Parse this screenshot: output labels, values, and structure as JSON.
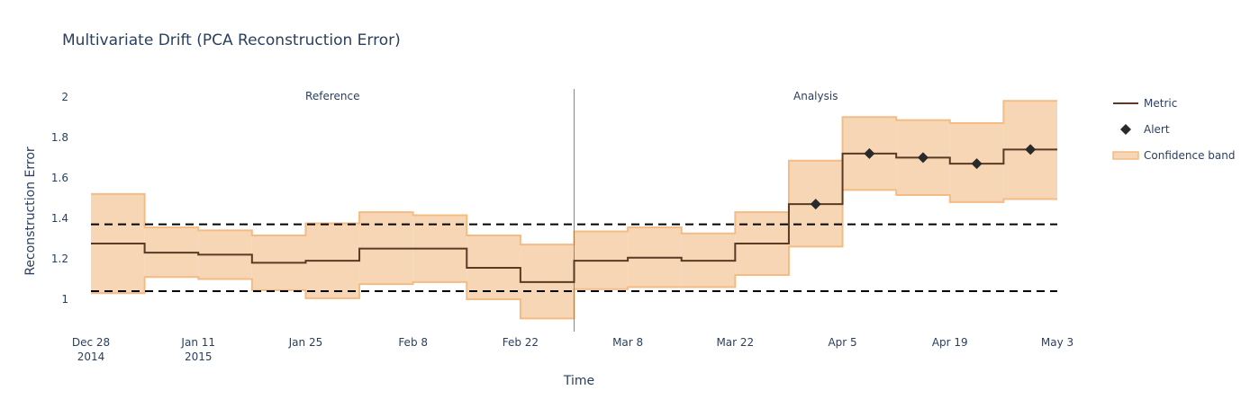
{
  "chart_data": {
    "type": "line",
    "title": "Multivariate Drift (PCA Reconstruction Error)",
    "xlabel": "Time",
    "ylabel": "Reconstruction Error",
    "ylim": [
      0.84,
      2.07
    ],
    "y_ticks": [
      1,
      1.2,
      1.4,
      1.6,
      1.8,
      2
    ],
    "y_tick_labels": [
      "1",
      "1.2",
      "1.4",
      "1.6",
      "1.8",
      "2"
    ],
    "x_range": [
      "2014-12-28",
      "2015-05-03"
    ],
    "x_ticks": [
      {
        "date": "2014-12-28",
        "label": "Dec 28",
        "sublabel": "2014"
      },
      {
        "date": "2015-01-11",
        "label": "Jan 11",
        "sublabel": "2015"
      },
      {
        "date": "2015-01-25",
        "label": "Jan 25",
        "sublabel": ""
      },
      {
        "date": "2015-02-08",
        "label": "Feb 8",
        "sublabel": ""
      },
      {
        "date": "2015-02-22",
        "label": "Feb 22",
        "sublabel": ""
      },
      {
        "date": "2015-03-08",
        "label": "Mar 8",
        "sublabel": ""
      },
      {
        "date": "2015-03-22",
        "label": "Mar 22",
        "sublabel": ""
      },
      {
        "date": "2015-04-05",
        "label": "Apr 5",
        "sublabel": ""
      },
      {
        "date": "2015-04-19",
        "label": "Apr 19",
        "sublabel": ""
      },
      {
        "date": "2015-05-03",
        "label": "May 3",
        "sublabel": ""
      }
    ],
    "chunks": [
      {
        "start": "2014-12-28",
        "end": "2015-01-04",
        "value": 1.275,
        "upper": 1.52,
        "lower": 1.03,
        "alert": false
      },
      {
        "start": "2015-01-04",
        "end": "2015-01-11",
        "value": 1.23,
        "upper": 1.355,
        "lower": 1.11,
        "alert": false
      },
      {
        "start": "2015-01-11",
        "end": "2015-01-18",
        "value": 1.22,
        "upper": 1.34,
        "lower": 1.1,
        "alert": false
      },
      {
        "start": "2015-01-18",
        "end": "2015-01-25",
        "value": 1.18,
        "upper": 1.315,
        "lower": 1.045,
        "alert": false
      },
      {
        "start": "2015-01-25",
        "end": "2015-02-01",
        "value": 1.19,
        "upper": 1.375,
        "lower": 1.005,
        "alert": false
      },
      {
        "start": "2015-02-01",
        "end": "2015-02-08",
        "value": 1.25,
        "upper": 1.43,
        "lower": 1.075,
        "alert": false
      },
      {
        "start": "2015-02-08",
        "end": "2015-02-15",
        "value": 1.25,
        "upper": 1.415,
        "lower": 1.085,
        "alert": false
      },
      {
        "start": "2015-02-15",
        "end": "2015-02-22",
        "value": 1.155,
        "upper": 1.315,
        "lower": 1.0,
        "alert": false
      },
      {
        "start": "2015-02-22",
        "end": "2015-03-01",
        "value": 1.085,
        "upper": 1.27,
        "lower": 0.905,
        "alert": false
      },
      {
        "start": "2015-03-01",
        "end": "2015-03-08",
        "value": 1.19,
        "upper": 1.335,
        "lower": 1.05,
        "alert": false
      },
      {
        "start": "2015-03-08",
        "end": "2015-03-15",
        "value": 1.205,
        "upper": 1.355,
        "lower": 1.06,
        "alert": false
      },
      {
        "start": "2015-03-15",
        "end": "2015-03-22",
        "value": 1.19,
        "upper": 1.325,
        "lower": 1.06,
        "alert": false
      },
      {
        "start": "2015-03-22",
        "end": "2015-03-29",
        "value": 1.275,
        "upper": 1.43,
        "lower": 1.12,
        "alert": false
      },
      {
        "start": "2015-03-29",
        "end": "2015-04-05",
        "value": 1.47,
        "upper": 1.685,
        "lower": 1.26,
        "alert": true
      },
      {
        "start": "2015-04-05",
        "end": "2015-04-12",
        "value": 1.72,
        "upper": 1.9,
        "lower": 1.54,
        "alert": true
      },
      {
        "start": "2015-04-12",
        "end": "2015-04-19",
        "value": 1.7,
        "upper": 1.885,
        "lower": 1.515,
        "alert": true
      },
      {
        "start": "2015-04-19",
        "end": "2015-04-26",
        "value": 1.67,
        "upper": 1.87,
        "lower": 1.48,
        "alert": true
      },
      {
        "start": "2015-04-26",
        "end": "2015-05-03",
        "value": 1.74,
        "upper": 1.98,
        "lower": 1.495,
        "alert": true
      }
    ],
    "thresholds": {
      "upper": 1.37,
      "lower": 1.04
    },
    "period_split": "2015-03-01",
    "periods": [
      {
        "label": "Reference",
        "start": "2014-12-28",
        "end": "2015-03-01"
      },
      {
        "label": "Analysis",
        "start": "2015-03-01",
        "end": "2015-05-03"
      }
    ],
    "legend": {
      "position": "top-right",
      "entries": [
        {
          "name": "Metric",
          "kind": "line"
        },
        {
          "name": "Alert",
          "kind": "diamond"
        },
        {
          "name": "Confidence band",
          "kind": "band"
        }
      ]
    },
    "colors": {
      "metric": "#5a3a22",
      "band_fill": "#f7d6b5",
      "band_edge": "#f3bc85",
      "alert": "#2a2a2a",
      "threshold": "#000000",
      "divider": "#888888"
    },
    "grid": false
  }
}
